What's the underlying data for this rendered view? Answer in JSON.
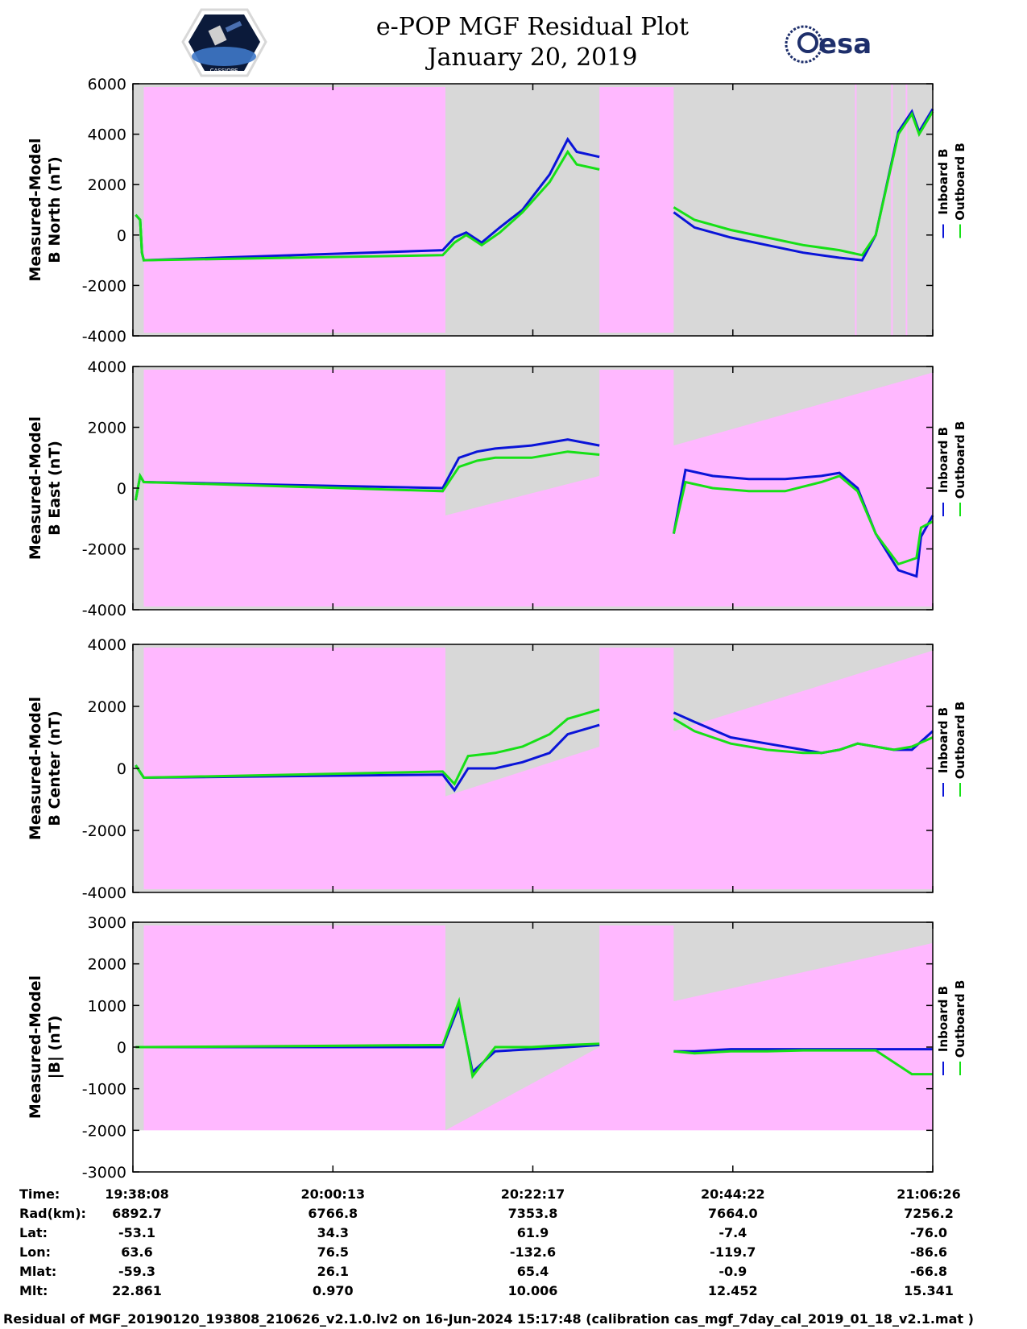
{
  "header": {
    "title_line1": "e-POP MGF Residual Plot",
    "title_line2": "January 20, 2019",
    "logo_left_text": "CASSIOPE",
    "logo_right_text": "esa"
  },
  "colors": {
    "inboard": "#0a14d8",
    "outboard": "#16e016",
    "pink": "#ffb8ff",
    "gray": "#d8d8d8"
  },
  "chart_data": [
    {
      "type": "line",
      "name": "panel-b-north",
      "ylabel_line1": "Measured-Model",
      "ylabel_line2": "B North (nT)",
      "ylim": [
        -4000,
        6000
      ],
      "yticks": [
        "6000",
        "4000",
        "2000",
        "0",
        "-2000",
        "-4000"
      ],
      "ytick_values": [
        6000,
        4000,
        2000,
        0,
        -2000,
        -4000
      ],
      "legend": [
        "Inboard B",
        "Outboard B"
      ],
      "x_range_min": [
        0,
        88.3
      ],
      "pink_regions": [
        {
          "x0": 1.2,
          "x1": 34.5,
          "y0": -3850,
          "y1": 5900
        },
        {
          "x0": 51.5,
          "x1": 59.7,
          "y0": -3850,
          "y1": 5900
        }
      ],
      "series": [
        {
          "name": "Inboard B",
          "x": [
            0.3,
            0.8,
            1.0,
            1.2,
            34.2,
            35.5,
            36.8,
            38.5,
            40.5,
            43,
            46,
            48,
            49,
            51.5
          ],
          "values": [
            800,
            600,
            -700,
            -1000,
            -600,
            -100,
            100,
            -300,
            300,
            1000,
            2400,
            3800,
            3300,
            3100
          ]
        },
        {
          "name": "Outboard B",
          "x": [
            0.3,
            0.8,
            1.0,
            1.2,
            34.2,
            35.5,
            36.8,
            38.5,
            40.5,
            43,
            46,
            48,
            49,
            51.5
          ],
          "values": [
            800,
            600,
            -700,
            -1000,
            -800,
            -300,
            0,
            -400,
            100,
            900,
            2100,
            3300,
            2800,
            2600
          ]
        },
        {
          "name": "Inboard B",
          "x": [
            59.7,
            62,
            66,
            70,
            74,
            78,
            80.5,
            82,
            84.5,
            86,
            86.8,
            88.3
          ],
          "values": [
            900,
            300,
            -100,
            -400,
            -700,
            -900,
            -1000,
            0,
            4100,
            4900,
            4100,
            5000
          ]
        },
        {
          "name": "Outboard B",
          "x": [
            59.7,
            62,
            66,
            70,
            74,
            78,
            80.5,
            82,
            84.5,
            86,
            86.8,
            88.3
          ],
          "values": [
            1100,
            600,
            200,
            -100,
            -400,
            -600,
            -800,
            0,
            4000,
            4800,
            4000,
            4900
          ]
        }
      ]
    },
    {
      "type": "line",
      "name": "panel-b-east",
      "ylabel_line1": "Measured-Model",
      "ylabel_line2": "B East (nT)",
      "ylim": [
        -4000,
        4000
      ],
      "yticks": [
        "4000",
        "2000",
        "0",
        "-2000",
        "-4000"
      ],
      "ytick_values": [
        4000,
        2000,
        0,
        -2000,
        -4000
      ],
      "legend": [
        "Inboard B",
        "Outboard B"
      ],
      "series": [
        {
          "name": "Inboard B",
          "x": [
            0.3,
            0.8,
            1.2,
            34.2,
            36,
            38,
            40,
            44,
            48,
            51.5
          ],
          "values": [
            -400,
            400,
            200,
            0,
            1000,
            1200,
            1300,
            1400,
            1600,
            1400
          ]
        },
        {
          "name": "Outboard B",
          "x": [
            0.3,
            0.8,
            1.2,
            34.2,
            36,
            38,
            40,
            44,
            48,
            51.5
          ],
          "values": [
            -400,
            400,
            200,
            -100,
            700,
            900,
            1000,
            1000,
            1200,
            1100
          ]
        },
        {
          "name": "Inboard B",
          "x": [
            59.7,
            61,
            64,
            68,
            72,
            76,
            78,
            80,
            82,
            84.5,
            86.5,
            87,
            88.3
          ],
          "values": [
            -1500,
            600,
            400,
            300,
            300,
            400,
            500,
            0,
            -1500,
            -2700,
            -2900,
            -1600,
            -900
          ]
        },
        {
          "name": "Outboard B",
          "x": [
            59.7,
            61,
            64,
            68,
            72,
            76,
            78,
            80,
            82,
            84.5,
            86.5,
            87,
            88.3
          ],
          "values": [
            -1500,
            200,
            0,
            -100,
            -100,
            200,
            400,
            -100,
            -1500,
            -2500,
            -2300,
            -1300,
            -1100
          ]
        }
      ]
    },
    {
      "type": "line",
      "name": "panel-b-center",
      "ylabel_line1": "Measured-Model",
      "ylabel_line2": "B Center (nT)",
      "ylim": [
        -4000,
        4000
      ],
      "yticks": [
        "4000",
        "2000",
        "0",
        "-2000",
        "-4000"
      ],
      "ytick_values": [
        4000,
        2000,
        0,
        -2000,
        -4000
      ],
      "legend": [
        "Inboard B",
        "Outboard B"
      ],
      "series": [
        {
          "name": "Inboard B",
          "x": [
            0.3,
            1.2,
            34.2,
            35.5,
            37,
            40,
            43,
            46,
            48,
            51.5
          ],
          "values": [
            100,
            -300,
            -200,
            -700,
            0,
            0,
            200,
            500,
            1100,
            1400
          ]
        },
        {
          "name": "Outboard B",
          "x": [
            0.3,
            1.2,
            34.2,
            35.5,
            37,
            40,
            43,
            46,
            48,
            51.5
          ],
          "values": [
            100,
            -300,
            -100,
            -500,
            400,
            500,
            700,
            1100,
            1600,
            1900
          ]
        },
        {
          "name": "Inboard B",
          "x": [
            59.7,
            62,
            66,
            70,
            74,
            76,
            78,
            80,
            82,
            84,
            86,
            88.3
          ],
          "values": [
            1800,
            1500,
            1000,
            800,
            600,
            500,
            600,
            800,
            700,
            600,
            600,
            1200
          ]
        },
        {
          "name": "Outboard B",
          "x": [
            59.7,
            62,
            66,
            70,
            74,
            76,
            78,
            80,
            82,
            84,
            86,
            88.3
          ],
          "values": [
            1600,
            1200,
            800,
            600,
            500,
            500,
            600,
            800,
            700,
            600,
            700,
            1000
          ]
        }
      ]
    },
    {
      "type": "line",
      "name": "panel-b-magnitude",
      "ylabel_line1": "Measured-Model",
      "ylabel_line2": "|B| (nT)",
      "ylim": [
        -3000,
        3000
      ],
      "yticks": [
        "3000",
        "2000",
        "1000",
        "0",
        "-1000",
        "-2000",
        "-3000"
      ],
      "ytick_values": [
        3000,
        2000,
        1000,
        0,
        -1000,
        -2000,
        -3000
      ],
      "legend": [
        "Inboard B",
        "Outboard B"
      ],
      "series": [
        {
          "name": "Inboard B",
          "x": [
            0.3,
            1.2,
            34.2,
            36,
            37.5,
            40,
            44,
            48,
            51.5
          ],
          "values": [
            0,
            0,
            0,
            1000,
            -600,
            -100,
            -50,
            0,
            50
          ]
        },
        {
          "name": "Outboard B",
          "x": [
            0.3,
            1.2,
            34.2,
            36,
            37.5,
            40,
            44,
            48,
            51.5
          ],
          "values": [
            0,
            0,
            50,
            1100,
            -700,
            0,
            0,
            50,
            80
          ]
        },
        {
          "name": "Inboard B",
          "x": [
            59.7,
            62,
            66,
            70,
            74,
            78,
            82,
            86,
            88.3
          ],
          "values": [
            -100,
            -100,
            -50,
            -50,
            -50,
            -50,
            -50,
            -50,
            -50
          ]
        },
        {
          "name": "Outboard B",
          "x": [
            59.7,
            62,
            66,
            70,
            74,
            78,
            82,
            86,
            88.3
          ],
          "values": [
            -100,
            -150,
            -100,
            -100,
            -80,
            -80,
            -80,
            -650,
            -650
          ]
        }
      ]
    }
  ],
  "x_axis": {
    "range": [
      0,
      88.3
    ],
    "tick_positions": [
      0,
      22.08,
      44.15,
      66.23,
      88.3
    ],
    "rows": [
      {
        "label": "Time:",
        "values": [
          "19:38:08",
          "20:00:13",
          "20:22:17",
          "20:44:22",
          "21:06:26"
        ]
      },
      {
        "label": "Rad(km):",
        "values": [
          "6892.7",
          "6766.8",
          "7353.8",
          "7664.0",
          "7256.2"
        ]
      },
      {
        "label": "Lat:",
        "values": [
          "-53.1",
          "34.3",
          "61.9",
          "-7.4",
          "-76.0"
        ]
      },
      {
        "label": "Lon:",
        "values": [
          "63.6",
          "76.5",
          "-132.6",
          "-119.7",
          "-86.6"
        ]
      },
      {
        "label": "Mlat:",
        "values": [
          "-59.3",
          "26.1",
          "65.4",
          "-0.9",
          "-66.8"
        ]
      },
      {
        "label": "Mlt:",
        "values": [
          "22.861",
          "0.970",
          "10.006",
          "12.452",
          "15.341"
        ]
      }
    ]
  },
  "footer": {
    "text": "Residual of MGF_20190120_193808_210626_v2.1.0.lv2 on 16-Jun-2024 15:17:48 (calibration cas_mgf_7day_cal_2019_01_18_v2.1.mat )"
  }
}
